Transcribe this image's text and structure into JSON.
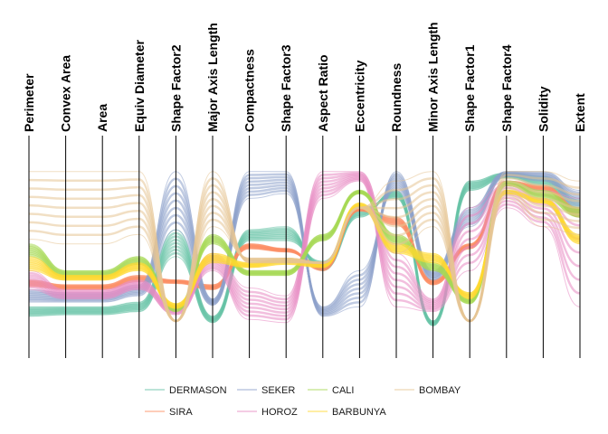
{
  "chart_data": {
    "type": "parallel-coordinates",
    "axes": [
      "Perimeter",
      "Convex Area",
      "Area",
      "Equiv Diameter",
      "Shape Factor2",
      "Major Axis Length",
      "Compactness",
      "Shape Factor3",
      "Aspect Ratio",
      "Eccentricity",
      "Roundness",
      "Minor Axis Length",
      "Shape Factor1",
      "Shape Factor4",
      "Solidity",
      "Extent"
    ],
    "ylim": [
      0,
      1
    ],
    "grid": false,
    "legend_position": "bottom",
    "series": [
      {
        "name": "DERMASON",
        "color": "#66c2a5",
        "lines": [
          [
            0.13,
            0.13,
            0.13,
            0.16,
            0.62,
            0.07,
            0.62,
            0.64,
            0.36,
            0.7,
            0.87,
            0.04,
            0.93,
            0.98,
            0.96,
            0.82
          ],
          [
            0.07,
            0.08,
            0.08,
            0.1,
            0.45,
            0.03,
            0.55,
            0.55,
            0.42,
            0.76,
            0.82,
            0.01,
            0.87,
            0.95,
            0.9,
            0.7
          ]
        ]
      },
      {
        "name": "SIRA",
        "color": "#fc8d62",
        "lines": [
          [
            0.3,
            0.27,
            0.27,
            0.33,
            0.3,
            0.27,
            0.53,
            0.5,
            0.36,
            0.76,
            0.7,
            0.3,
            0.53,
            0.93,
            0.9,
            0.76
          ],
          [
            0.26,
            0.24,
            0.24,
            0.29,
            0.28,
            0.24,
            0.5,
            0.48,
            0.4,
            0.74,
            0.65,
            0.27,
            0.5,
            0.9,
            0.87,
            0.7
          ]
        ]
      },
      {
        "name": "SEKER",
        "color": "#8da0cb",
        "lines": [
          [
            0.24,
            0.22,
            0.22,
            0.27,
            0.99,
            0.18,
            0.99,
            0.99,
            0.07,
            0.13,
            0.99,
            0.36,
            0.76,
            0.99,
            0.99,
            0.87
          ],
          [
            0.16,
            0.16,
            0.16,
            0.2,
            0.62,
            0.14,
            0.82,
            0.85,
            0.13,
            0.36,
            0.87,
            0.3,
            0.64,
            0.96,
            0.93,
            0.76
          ]
        ]
      },
      {
        "name": "HOROZ",
        "color": "#e78ac3",
        "lines": [
          [
            0.36,
            0.24,
            0.24,
            0.3,
            0.13,
            0.47,
            0.25,
            0.2,
            0.99,
            0.99,
            0.47,
            0.18,
            0.76,
            0.93,
            0.87,
            0.82
          ],
          [
            0.24,
            0.18,
            0.18,
            0.24,
            0.08,
            0.36,
            0.05,
            0.03,
            0.82,
            0.93,
            0.13,
            0.1,
            0.36,
            0.76,
            0.64,
            0.13
          ]
        ]
      },
      {
        "name": "CALI",
        "color": "#a6d854",
        "lines": [
          [
            0.53,
            0.36,
            0.36,
            0.45,
            0.13,
            0.59,
            0.36,
            0.36,
            0.59,
            0.87,
            0.59,
            0.41,
            0.18,
            0.93,
            0.87,
            0.76
          ],
          [
            0.45,
            0.32,
            0.32,
            0.4,
            0.1,
            0.53,
            0.33,
            0.33,
            0.55,
            0.85,
            0.53,
            0.36,
            0.15,
            0.9,
            0.82,
            0.7
          ]
        ]
      },
      {
        "name": "BARBUNYA",
        "color": "#ffd92f",
        "lines": [
          [
            0.45,
            0.33,
            0.33,
            0.41,
            0.15,
            0.47,
            0.41,
            0.44,
            0.41,
            0.79,
            0.53,
            0.47,
            0.18,
            0.87,
            0.82,
            0.59
          ],
          [
            0.36,
            0.3,
            0.3,
            0.36,
            0.12,
            0.41,
            0.38,
            0.4,
            0.38,
            0.76,
            0.47,
            0.41,
            0.22,
            0.85,
            0.79,
            0.53
          ]
        ]
      },
      {
        "name": "BOMBAY",
        "color": "#e5c494",
        "lines": [
          [
            0.99,
            0.99,
            0.99,
            0.99,
            0.04,
            0.99,
            0.41,
            0.41,
            0.41,
            0.76,
            0.93,
            0.99,
            0.04,
            0.99,
            0.99,
            0.93
          ],
          [
            0.56,
            0.53,
            0.53,
            0.59,
            0.04,
            0.64,
            0.44,
            0.44,
            0.41,
            0.76,
            0.47,
            0.64,
            0.04,
            0.82,
            0.64,
            0.59
          ]
        ]
      }
    ]
  }
}
